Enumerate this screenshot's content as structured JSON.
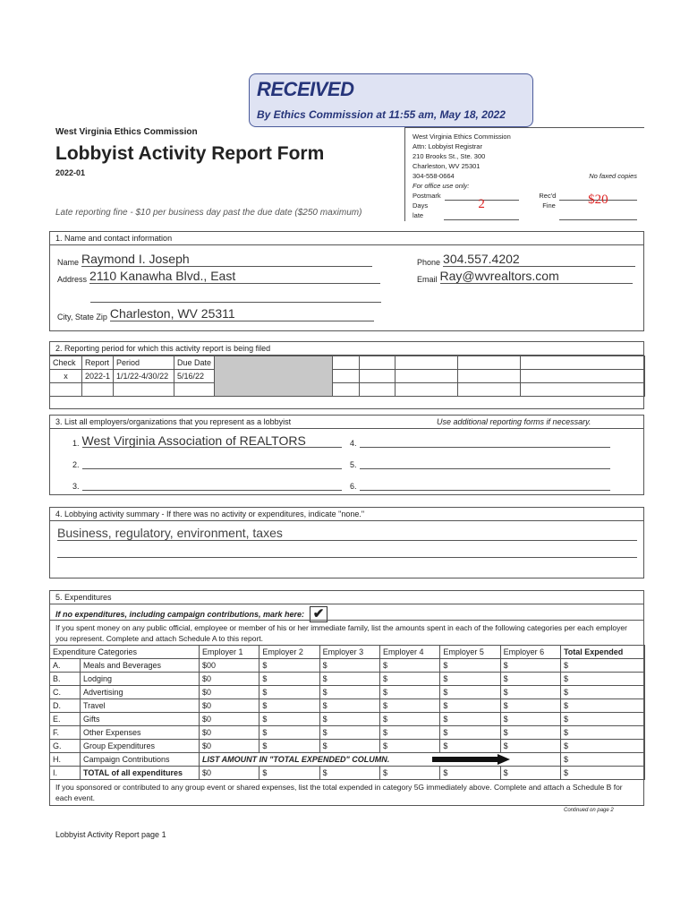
{
  "stamp": {
    "title": "RECEIVED",
    "subtitle": "By Ethics Commission at 11:55 am, May 18, 2022"
  },
  "header": {
    "org": "West Virginia Ethics Commission",
    "title": "Lobbyist Activity Report Form",
    "code": "2022-01",
    "late_fine": "Late reporting fine - $10 per business day past the due date ($250 maximum)"
  },
  "office_box": {
    "lines": [
      "West Virginia Ethics Commission",
      "Attn:  Lobbyist Registrar",
      "210 Brooks St., Ste. 300",
      "Charleston, WV  25301",
      "304-558-0664"
    ],
    "no_fax": "No faxed copies",
    "office_use": "For office use only:",
    "postmark_label": "Postmark",
    "recd_label": "Rec'd",
    "days_late_label": "Days late",
    "days_late_value": "2",
    "fine_label": "Fine",
    "fine_value": "$20"
  },
  "section1": {
    "heading": "1.     Name and contact information",
    "name_label": "Name",
    "name": "Raymond I. Joseph",
    "address_label": "Address",
    "address": "2110 Kanawha Blvd., East",
    "city_label": "City, State  Zip",
    "city": "Charleston, WV 25311",
    "phone_label": "Phone",
    "phone": "304.557.4202",
    "email_label": "Email",
    "email": "Ray@wvrealtors.com"
  },
  "section2": {
    "heading": "2.     Reporting period for which this activity report is being filed",
    "columns": [
      "Check",
      "Report",
      "Period",
      "Due Date"
    ],
    "row": [
      "x",
      "2022-1",
      "1/1/22-4/30/22",
      "5/16/22"
    ]
  },
  "section3": {
    "heading": "3.     List all employers/organizations that you represent as a lobbyist",
    "note": "Use additional reporting forms if necessary.",
    "employers": [
      {
        "n": "1.",
        "v": "West Virginia Association of REALTORS"
      },
      {
        "n": "2.",
        "v": ""
      },
      {
        "n": "3.",
        "v": ""
      },
      {
        "n": "4.",
        "v": ""
      },
      {
        "n": "5.",
        "v": ""
      },
      {
        "n": "6.",
        "v": ""
      }
    ]
  },
  "section4": {
    "heading": "4.     Lobbying activity summary - If there was no activity or expenditures, indicate \"none.\"",
    "summary": "Business, regulatory, environment, taxes"
  },
  "section5": {
    "heading": "5.     Expenditures",
    "no_exp": "If no expenditures, including campaign contributions, mark here:",
    "no_exp_checked": true,
    "intro": "If you spent money on any public official, employee or member of his or her immediate family, list the amounts spent in each of the following categories per each employer you represent.  Complete and attach Schedule A to this report.",
    "columns": [
      "Expenditure Categories",
      "Employer 1",
      "Employer 2",
      "Employer 3",
      "Employer 4",
      "Employer 5",
      "Employer 6",
      "Total Expended"
    ],
    "rows": [
      [
        "A.",
        "Meals and Beverages",
        "$00",
        "$",
        "$",
        "$",
        "$",
        "$",
        "$"
      ],
      [
        "B.",
        "Lodging",
        "$0",
        "$",
        "$",
        "$",
        "$",
        "$",
        "$"
      ],
      [
        "C.",
        "Advertising",
        "$0",
        "$",
        "$",
        "$",
        "$",
        "$",
        "$"
      ],
      [
        "D.",
        "Travel",
        "$0",
        "$",
        "$",
        "$",
        "$",
        "$",
        "$"
      ],
      [
        "E.",
        "Gifts",
        "$0",
        "$",
        "$",
        "$",
        "$",
        "$",
        "$"
      ],
      [
        "F.",
        "Other Expenses",
        "$0",
        "$",
        "$",
        "$",
        "$",
        "$",
        "$"
      ],
      [
        "G.",
        "Group Expenditures",
        "$0",
        "$",
        "$",
        "$",
        "$",
        "$",
        "$"
      ]
    ],
    "row_h": {
      "code": "H.",
      "label": "Campaign Contributions",
      "note": "LIST AMOUNT IN \"TOTAL EXPENDED\" COLUMN.",
      "total": "$"
    },
    "row_i": [
      "I.",
      "TOTAL of all expenditures",
      "$0",
      "$",
      "$",
      "$",
      "$",
      "$",
      "$"
    ],
    "footer_note": "If you sponsored or contributed to any group event or shared expenses, list the total expended in category 5G immediately above.  Complete and attach a Schedule B for each event."
  },
  "continued": "Continued on page 2",
  "page_footer": "Lobbyist Activity Report page 1"
}
